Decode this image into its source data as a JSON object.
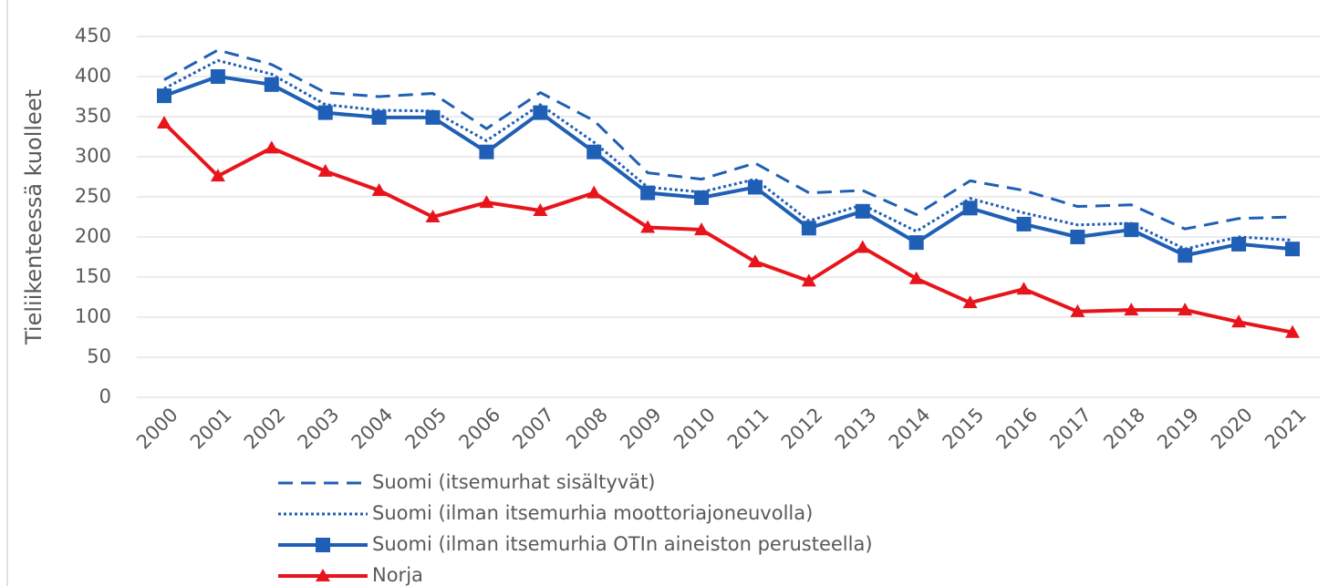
{
  "chart_data": {
    "type": "line",
    "y_label": "Tieliikenteessä kuolleet",
    "categories": [
      "2000",
      "2001",
      "2002",
      "2003",
      "2004",
      "2005",
      "2006",
      "2007",
      "2008",
      "2009",
      "2010",
      "2011",
      "2012",
      "2013",
      "2014",
      "2015",
      "2016",
      "2017",
      "2018",
      "2019",
      "2020",
      "2021"
    ],
    "ylim": [
      0,
      450
    ],
    "yticks": [
      0,
      50,
      100,
      150,
      200,
      250,
      300,
      350,
      400,
      450
    ],
    "grid": true,
    "legend": "bottom",
    "series": [
      {
        "name": "Suomi (itsemurhat sisältyvät)",
        "color": "#1f5fb5",
        "dash": "dashed",
        "marker": null,
        "values": [
          396,
          433,
          415,
          380,
          375,
          379,
          335,
          380,
          345,
          280,
          272,
          292,
          255,
          258,
          228,
          270,
          258,
          238,
          240,
          210,
          223,
          225
        ]
      },
      {
        "name": "Suomi (ilman itsemurhia moottoriajoneuvolla)",
        "color": "#1f5fb5",
        "dash": "dotted",
        "marker": null,
        "values": [
          385,
          420,
          403,
          365,
          358,
          357,
          320,
          365,
          318,
          262,
          256,
          272,
          220,
          240,
          207,
          248,
          230,
          215,
          217,
          185,
          200,
          196
        ]
      },
      {
        "name": "Suomi (ilman itsemurhia OTIn aineiston perusteella)",
        "color": "#1f5fb5",
        "dash": "solid",
        "marker": "square",
        "values": [
          376,
          400,
          390,
          355,
          349,
          349,
          306,
          355,
          306,
          255,
          249,
          262,
          211,
          232,
          193,
          236,
          216,
          200,
          209,
          177,
          191,
          185
        ]
      },
      {
        "name": "Norja",
        "color": "#e8141c",
        "dash": "solid",
        "marker": "triangle",
        "values": [
          342,
          276,
          311,
          282,
          258,
          225,
          243,
          233,
          255,
          212,
          209,
          169,
          145,
          187,
          148,
          118,
          135,
          107,
          109,
          109,
          94,
          81
        ]
      }
    ]
  }
}
